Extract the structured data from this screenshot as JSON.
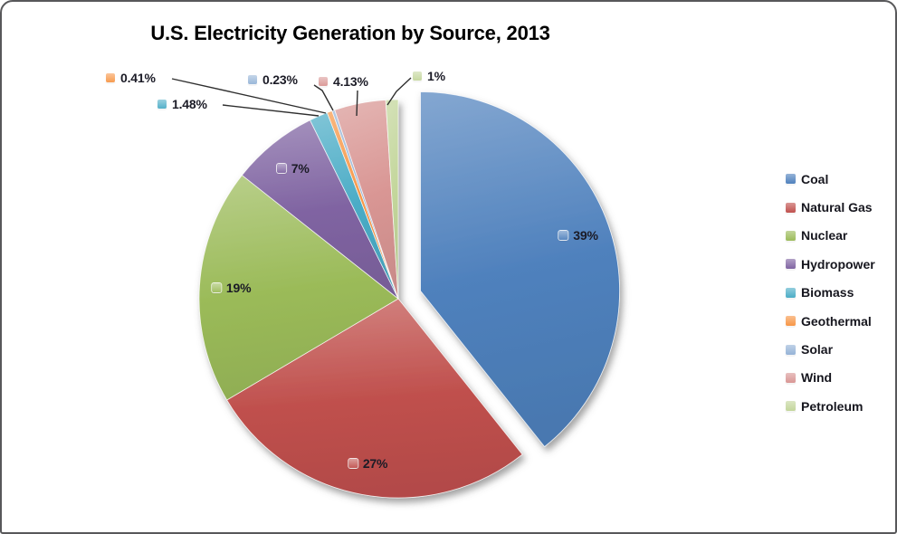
{
  "chart_data": {
    "type": "pie",
    "title": "U.S. Electricity Generation by Source, 2013",
    "unit": "%",
    "legend_position": "right",
    "start_angle_deg": 0,
    "direction": "clockwise",
    "series": [
      {
        "name": "Coal",
        "value": 39,
        "label": "39%",
        "color": "#4F81BD",
        "exploded": true
      },
      {
        "name": "Natural Gas",
        "value": 27,
        "label": "27%",
        "color": "#C0504D",
        "exploded": false
      },
      {
        "name": "Nuclear",
        "value": 19,
        "label": "19%",
        "color": "#9BBB59",
        "exploded": false
      },
      {
        "name": "Hydropower",
        "value": 7,
        "label": "7%",
        "color": "#8064A2",
        "exploded": false
      },
      {
        "name": "Biomass",
        "value": 1.48,
        "label": "1.48%",
        "color": "#4BACC6",
        "exploded": false
      },
      {
        "name": "Geothermal",
        "value": 0.41,
        "label": "0.41%",
        "color": "#F79646",
        "exploded": false
      },
      {
        "name": "Solar",
        "value": 0.23,
        "label": "0.23%",
        "color": "#95B3D7",
        "exploded": false
      },
      {
        "name": "Wind",
        "value": 4.13,
        "label": "4.13%",
        "color": "#D99694",
        "exploded": false
      },
      {
        "name": "Petroleum",
        "value": 1,
        "label": "1%",
        "color": "#C3D69B",
        "exploded": false
      }
    ]
  }
}
